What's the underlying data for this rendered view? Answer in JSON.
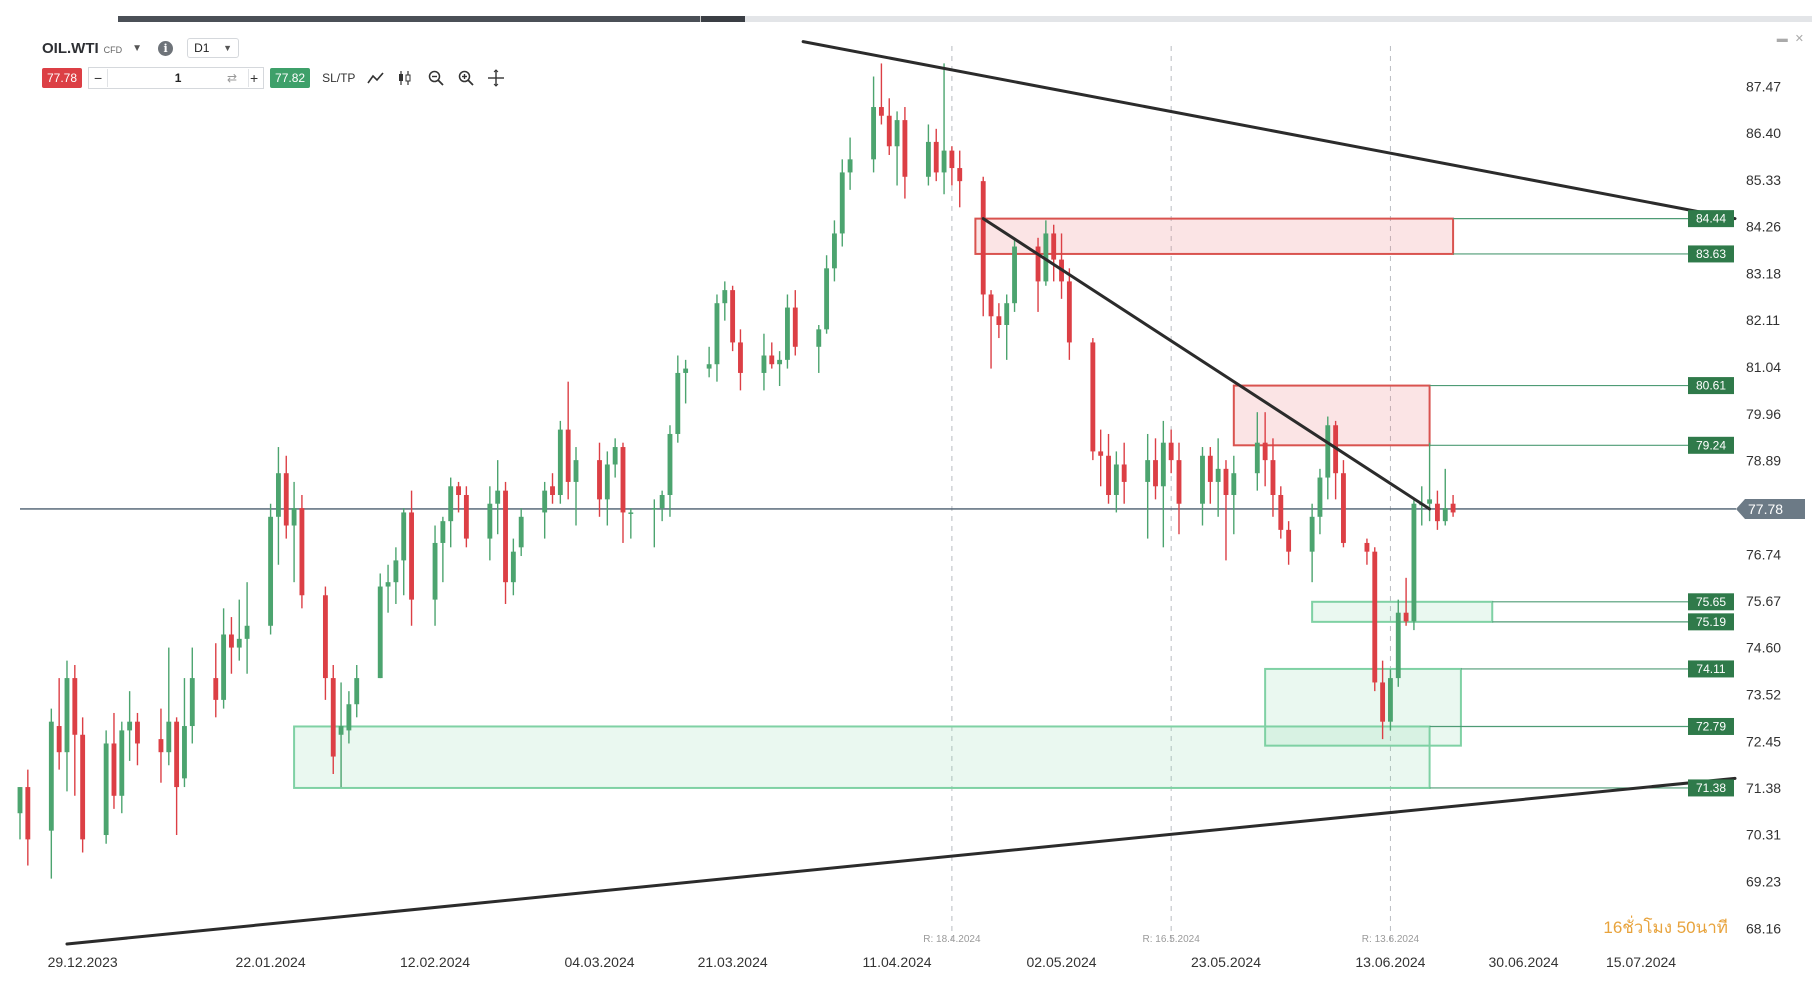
{
  "toolbar": {
    "symbol": "OIL.WTI",
    "instrument_type": "CFD",
    "timeframe": "D1",
    "sell_price": "77.78",
    "buy_price": "77.82",
    "quantity": "1",
    "qty_minus": "−",
    "qty_plus": "+",
    "sltp_label": "SL/TP",
    "info_glyph": "i"
  },
  "timer": "16ชั่วโมง 50นาที",
  "colors": {
    "bull": "#4ca46f",
    "bear": "#dc3f45",
    "level_tag": "#2f7a4a",
    "current_price_tag": "#6c7a86",
    "trendline": "#2b2b2b",
    "demand_zone": "#7fd1a4",
    "supply_zone": "#d9534f"
  },
  "chart_data": {
    "type": "candlestick",
    "symbol": "OIL.WTI",
    "timeframe": "D1",
    "ylim": [
      67.8,
      88.4
    ],
    "x_range": [
      "2023-12-21",
      "2024-07-27"
    ],
    "y_ticks": [
      "87.47",
      "86.40",
      "85.33",
      "84.26",
      "83.18",
      "82.11",
      "81.04",
      "79.96",
      "78.89",
      "77.78",
      "76.74",
      "75.67",
      "74.60",
      "73.52",
      "72.45",
      "71.38",
      "70.31",
      "69.23",
      "68.16"
    ],
    "x_tick_labels": [
      {
        "date": "2023-12-29",
        "label": "29.12.2023"
      },
      {
        "date": "2024-01-22",
        "label": "22.01.2024"
      },
      {
        "date": "2024-02-12",
        "label": "12.02.2024"
      },
      {
        "date": "2024-03-04",
        "label": "04.03.2024"
      },
      {
        "date": "2024-03-21",
        "label": "21.03.2024"
      },
      {
        "date": "2024-04-11",
        "label": "11.04.2024"
      },
      {
        "date": "2024-05-02",
        "label": "02.05.2024"
      },
      {
        "date": "2024-05-23",
        "label": "23.05.2024"
      },
      {
        "date": "2024-06-13",
        "label": "13.06.2024"
      },
      {
        "date": "2024-06-30",
        "label": "30.06.2024"
      },
      {
        "date": "2024-07-15",
        "label": "15.07.2024"
      }
    ],
    "rollover_markers": [
      {
        "date": "2024-04-18",
        "label": "R: 18.4.2024"
      },
      {
        "date": "2024-05-16",
        "label": "R: 16.5.2024"
      },
      {
        "date": "2024-06-13",
        "label": "R: 13.6.2024"
      }
    ],
    "current_price": 77.78,
    "level_tags": [
      "84.44",
      "83.63",
      "80.61",
      "79.24",
      "75.65",
      "75.19",
      "74.11",
      "72.79",
      "71.38"
    ],
    "zones": [
      {
        "type": "supply",
        "start": "2024-04-21",
        "end": "2024-06-21",
        "top": 84.44,
        "bottom": 83.63
      },
      {
        "type": "supply",
        "start": "2024-05-24",
        "end": "2024-06-18",
        "top": 80.61,
        "bottom": 79.24
      },
      {
        "type": "demand",
        "start": "2024-06-03",
        "end": "2024-06-26",
        "top": 75.65,
        "bottom": 75.19
      },
      {
        "type": "demand",
        "start": "2024-05-28",
        "end": "2024-06-22",
        "top": 74.11,
        "bottom": 72.35
      },
      {
        "type": "demand",
        "start": "2024-01-25",
        "end": "2024-06-18",
        "top": 72.79,
        "bottom": 71.38
      }
    ],
    "trendlines": [
      {
        "x1": "2024-03-30",
        "y1": 88.5,
        "x2": "2024-07-27",
        "y2": 84.44
      },
      {
        "x1": "2024-04-22",
        "y1": 84.44,
        "x2": "2024-06-18",
        "y2": 77.78
      },
      {
        "x1": "2023-12-27",
        "y1": 67.8,
        "x2": "2024-07-27",
        "y2": 71.6
      }
    ],
    "candles": [
      {
        "d": "2023-12-21",
        "o": 70.8,
        "h": 71.4,
        "l": 70.2,
        "c": 71.4
      },
      {
        "d": "2023-12-22",
        "o": 71.4,
        "h": 71.8,
        "l": 69.6,
        "c": 70.2
      },
      {
        "d": "2023-12-25",
        "o": 70.4,
        "h": 73.2,
        "l": 69.3,
        "c": 72.9
      },
      {
        "d": "2023-12-26",
        "o": 72.8,
        "h": 73.9,
        "l": 71.8,
        "c": 72.2
      },
      {
        "d": "2023-12-27",
        "o": 72.2,
        "h": 74.3,
        "l": 71.3,
        "c": 73.9
      },
      {
        "d": "2023-12-28",
        "o": 73.9,
        "h": 74.2,
        "l": 71.2,
        "c": 72.6
      },
      {
        "d": "2023-12-29",
        "o": 72.6,
        "h": 73.0,
        "l": 69.9,
        "c": 70.2
      },
      {
        "d": "2024-01-01",
        "o": 70.3,
        "h": 72.7,
        "l": 70.1,
        "c": 72.4
      },
      {
        "d": "2024-01-02",
        "o": 72.4,
        "h": 73.1,
        "l": 70.9,
        "c": 71.2
      },
      {
        "d": "2024-01-03",
        "o": 71.2,
        "h": 72.9,
        "l": 70.8,
        "c": 72.7
      },
      {
        "d": "2024-01-04",
        "o": 72.7,
        "h": 73.6,
        "l": 72.0,
        "c": 72.9
      },
      {
        "d": "2024-01-05",
        "o": 72.9,
        "h": 73.1,
        "l": 71.9,
        "c": 72.4
      },
      {
        "d": "2024-01-08",
        "o": 72.5,
        "h": 73.2,
        "l": 71.5,
        "c": 72.2
      },
      {
        "d": "2024-01-09",
        "o": 72.2,
        "h": 74.6,
        "l": 71.9,
        "c": 72.9
      },
      {
        "d": "2024-01-10",
        "o": 72.9,
        "h": 73.0,
        "l": 70.3,
        "c": 71.4
      },
      {
        "d": "2024-01-11",
        "o": 71.6,
        "h": 73.9,
        "l": 71.4,
        "c": 72.8
      },
      {
        "d": "2024-01-12",
        "o": 72.8,
        "h": 74.6,
        "l": 72.4,
        "c": 73.9
      },
      {
        "d": "2024-01-15",
        "o": 73.9,
        "h": 74.7,
        "l": 73.0,
        "c": 73.4
      },
      {
        "d": "2024-01-16",
        "o": 73.4,
        "h": 75.5,
        "l": 73.2,
        "c": 74.9
      },
      {
        "d": "2024-01-17",
        "o": 74.9,
        "h": 75.3,
        "l": 74.0,
        "c": 74.6
      },
      {
        "d": "2024-01-18",
        "o": 74.6,
        "h": 75.7,
        "l": 74.3,
        "c": 74.8
      },
      {
        "d": "2024-01-19",
        "o": 74.8,
        "h": 76.1,
        "l": 74.0,
        "c": 75.1
      },
      {
        "d": "2024-01-22",
        "o": 75.1,
        "h": 77.9,
        "l": 74.9,
        "c": 77.6
      },
      {
        "d": "2024-01-23",
        "o": 77.6,
        "h": 79.2,
        "l": 76.5,
        "c": 78.6
      },
      {
        "d": "2024-01-24",
        "o": 78.6,
        "h": 79.0,
        "l": 77.1,
        "c": 77.4
      },
      {
        "d": "2024-01-25",
        "o": 77.4,
        "h": 78.4,
        "l": 76.1,
        "c": 77.8
      },
      {
        "d": "2024-01-26",
        "o": 77.8,
        "h": 78.1,
        "l": 75.5,
        "c": 75.8
      },
      {
        "d": "2024-01-29",
        "o": 75.8,
        "h": 76.0,
        "l": 73.4,
        "c": 73.9
      },
      {
        "d": "2024-01-30",
        "o": 73.9,
        "h": 74.2,
        "l": 71.7,
        "c": 72.1
      },
      {
        "d": "2024-01-31",
        "o": 72.6,
        "h": 73.8,
        "l": 71.4,
        "c": 72.8
      },
      {
        "d": "2024-02-01",
        "o": 72.7,
        "h": 73.6,
        "l": 72.4,
        "c": 73.3
      },
      {
        "d": "2024-02-02",
        "o": 73.3,
        "h": 74.2,
        "l": 73.0,
        "c": 73.9
      },
      {
        "d": "2024-02-05",
        "o": 73.9,
        "h": 76.3,
        "l": 73.9,
        "c": 76.0
      },
      {
        "d": "2024-02-06",
        "o": 76.0,
        "h": 76.5,
        "l": 75.4,
        "c": 76.1
      },
      {
        "d": "2024-02-07",
        "o": 76.1,
        "h": 76.9,
        "l": 75.6,
        "c": 76.6
      },
      {
        "d": "2024-02-08",
        "o": 76.6,
        "h": 77.8,
        "l": 75.8,
        "c": 77.7
      },
      {
        "d": "2024-02-09",
        "o": 77.7,
        "h": 78.2,
        "l": 75.1,
        "c": 75.7
      },
      {
        "d": "2024-02-12",
        "o": 75.7,
        "h": 77.4,
        "l": 75.1,
        "c": 77.0
      },
      {
        "d": "2024-02-13",
        "o": 77.0,
        "h": 77.6,
        "l": 76.1,
        "c": 77.5
      },
      {
        "d": "2024-02-14",
        "o": 77.5,
        "h": 78.5,
        "l": 76.9,
        "c": 78.3
      },
      {
        "d": "2024-02-15",
        "o": 78.3,
        "h": 78.4,
        "l": 77.7,
        "c": 78.1
      },
      {
        "d": "2024-02-16",
        "o": 78.1,
        "h": 78.3,
        "l": 76.9,
        "c": 77.1
      },
      {
        "d": "2024-02-19",
        "o": 77.1,
        "h": 78.3,
        "l": 76.6,
        "c": 77.9
      },
      {
        "d": "2024-02-20",
        "o": 77.9,
        "h": 78.9,
        "l": 77.2,
        "c": 78.2
      },
      {
        "d": "2024-02-21",
        "o": 78.2,
        "h": 78.4,
        "l": 75.6,
        "c": 76.1
      },
      {
        "d": "2024-02-22",
        "o": 76.1,
        "h": 77.1,
        "l": 75.8,
        "c": 76.8
      },
      {
        "d": "2024-02-23",
        "o": 76.9,
        "h": 77.8,
        "l": 76.7,
        "c": 77.6
      },
      {
        "d": "2024-02-26",
        "o": 77.7,
        "h": 78.4,
        "l": 77.1,
        "c": 78.2
      },
      {
        "d": "2024-02-27",
        "o": 78.3,
        "h": 78.6,
        "l": 77.9,
        "c": 78.1
      },
      {
        "d": "2024-02-28",
        "o": 78.1,
        "h": 79.8,
        "l": 77.9,
        "c": 79.6
      },
      {
        "d": "2024-02-29",
        "o": 79.6,
        "h": 80.7,
        "l": 78.0,
        "c": 78.4
      },
      {
        "d": "2024-03-01",
        "o": 78.4,
        "h": 79.2,
        "l": 77.4,
        "c": 78.9
      },
      {
        "d": "2024-03-04",
        "o": 78.9,
        "h": 79.3,
        "l": 77.6,
        "c": 78.0
      },
      {
        "d": "2024-03-05",
        "o": 78.0,
        "h": 79.1,
        "l": 77.4,
        "c": 78.8
      },
      {
        "d": "2024-03-06",
        "o": 78.8,
        "h": 79.4,
        "l": 78.5,
        "c": 79.2
      },
      {
        "d": "2024-03-07",
        "o": 79.2,
        "h": 79.3,
        "l": 77.0,
        "c": 77.7
      },
      {
        "d": "2024-03-08",
        "o": 77.7,
        "h": 77.8,
        "l": 77.1,
        "c": 77.7
      },
      {
        "d": "2024-03-11",
        "o": 77.8,
        "h": 78.0,
        "l": 76.9,
        "c": 77.8
      },
      {
        "d": "2024-03-12",
        "o": 77.8,
        "h": 78.2,
        "l": 77.5,
        "c": 78.1
      },
      {
        "d": "2024-03-13",
        "o": 78.1,
        "h": 79.7,
        "l": 77.6,
        "c": 79.5
      },
      {
        "d": "2024-03-14",
        "o": 79.5,
        "h": 81.3,
        "l": 79.3,
        "c": 80.9
      },
      {
        "d": "2024-03-15",
        "o": 80.9,
        "h": 81.2,
        "l": 80.2,
        "c": 81.0
      },
      {
        "d": "2024-03-18",
        "o": 81.0,
        "h": 81.5,
        "l": 80.8,
        "c": 81.1
      },
      {
        "d": "2024-03-19",
        "o": 81.1,
        "h": 82.7,
        "l": 80.7,
        "c": 82.5
      },
      {
        "d": "2024-03-20",
        "o": 82.5,
        "h": 83.0,
        "l": 82.1,
        "c": 82.8
      },
      {
        "d": "2024-03-21",
        "o": 82.8,
        "h": 82.9,
        "l": 81.4,
        "c": 81.6
      },
      {
        "d": "2024-03-22",
        "o": 81.6,
        "h": 81.9,
        "l": 80.5,
        "c": 80.9
      },
      {
        "d": "2024-03-25",
        "o": 80.9,
        "h": 81.8,
        "l": 80.5,
        "c": 81.3
      },
      {
        "d": "2024-03-26",
        "o": 81.3,
        "h": 81.6,
        "l": 81.0,
        "c": 81.1
      },
      {
        "d": "2024-03-27",
        "o": 81.1,
        "h": 81.4,
        "l": 80.6,
        "c": 81.2
      },
      {
        "d": "2024-03-28",
        "o": 81.2,
        "h": 82.7,
        "l": 81.0,
        "c": 82.4
      },
      {
        "d": "2024-03-29",
        "o": 82.4,
        "h": 82.8,
        "l": 81.3,
        "c": 81.5
      },
      {
        "d": "2024-04-01",
        "o": 81.5,
        "h": 82.0,
        "l": 80.9,
        "c": 81.9
      },
      {
        "d": "2024-04-02",
        "o": 81.9,
        "h": 83.6,
        "l": 81.8,
        "c": 83.3
      },
      {
        "d": "2024-04-03",
        "o": 83.3,
        "h": 84.4,
        "l": 83.0,
        "c": 84.1
      },
      {
        "d": "2024-04-04",
        "o": 84.1,
        "h": 85.8,
        "l": 83.8,
        "c": 85.5
      },
      {
        "d": "2024-04-05",
        "o": 85.5,
        "h": 86.3,
        "l": 85.1,
        "c": 85.8
      },
      {
        "d": "2024-04-08",
        "o": 85.8,
        "h": 87.7,
        "l": 85.5,
        "c": 87.0
      },
      {
        "d": "2024-04-09",
        "o": 87.0,
        "h": 88.0,
        "l": 86.6,
        "c": 86.8
      },
      {
        "d": "2024-04-10",
        "o": 86.8,
        "h": 87.2,
        "l": 85.9,
        "c": 86.1
      },
      {
        "d": "2024-04-11",
        "o": 86.1,
        "h": 86.9,
        "l": 85.2,
        "c": 86.7
      },
      {
        "d": "2024-04-12",
        "o": 86.7,
        "h": 87.0,
        "l": 84.9,
        "c": 85.4
      },
      {
        "d": "2024-04-15",
        "o": 85.4,
        "h": 86.6,
        "l": 85.2,
        "c": 86.2
      },
      {
        "d": "2024-04-16",
        "o": 86.2,
        "h": 86.5,
        "l": 85.3,
        "c": 85.5
      },
      {
        "d": "2024-04-17",
        "o": 85.5,
        "h": 88.0,
        "l": 85.0,
        "c": 86.0
      },
      {
        "d": "2024-04-18",
        "o": 86.0,
        "h": 86.1,
        "l": 85.2,
        "c": 85.6
      },
      {
        "d": "2024-04-19",
        "o": 85.6,
        "h": 86.0,
        "l": 84.7,
        "c": 85.3
      },
      {
        "d": "2024-04-22",
        "o": 85.3,
        "h": 85.4,
        "l": 82.2,
        "c": 82.7
      },
      {
        "d": "2024-04-23",
        "o": 82.7,
        "h": 82.8,
        "l": 81.0,
        "c": 82.2
      },
      {
        "d": "2024-04-24",
        "o": 82.2,
        "h": 82.5,
        "l": 81.7,
        "c": 82.0
      },
      {
        "d": "2024-04-25",
        "o": 82.0,
        "h": 82.7,
        "l": 81.2,
        "c": 82.5
      },
      {
        "d": "2024-04-26",
        "o": 82.5,
        "h": 84.0,
        "l": 82.3,
        "c": 83.8
      },
      {
        "d": "2024-04-29",
        "o": 83.8,
        "h": 84.0,
        "l": 82.3,
        "c": 83.0
      },
      {
        "d": "2024-04-30",
        "o": 83.0,
        "h": 84.4,
        "l": 82.9,
        "c": 84.1
      },
      {
        "d": "2024-05-01",
        "o": 84.1,
        "h": 84.3,
        "l": 83.0,
        "c": 83.5
      },
      {
        "d": "2024-05-02",
        "o": 83.5,
        "h": 84.1,
        "l": 82.6,
        "c": 83.0
      },
      {
        "d": "2024-05-03",
        "o": 83.0,
        "h": 83.3,
        "l": 81.2,
        "c": 81.6
      },
      {
        "d": "2024-05-06",
        "o": 81.6,
        "h": 81.7,
        "l": 78.9,
        "c": 79.1
      },
      {
        "d": "2024-05-07",
        "o": 79.1,
        "h": 79.6,
        "l": 78.3,
        "c": 79.0
      },
      {
        "d": "2024-05-08",
        "o": 79.0,
        "h": 79.5,
        "l": 77.9,
        "c": 78.1
      },
      {
        "d": "2024-05-09",
        "o": 78.1,
        "h": 79.1,
        "l": 77.7,
        "c": 78.8
      },
      {
        "d": "2024-05-10",
        "o": 78.8,
        "h": 79.3,
        "l": 77.9,
        "c": 78.4
      },
      {
        "d": "2024-05-13",
        "o": 78.4,
        "h": 79.5,
        "l": 77.1,
        "c": 78.9
      },
      {
        "d": "2024-05-14",
        "o": 78.9,
        "h": 79.4,
        "l": 78.0,
        "c": 78.3
      },
      {
        "d": "2024-05-15",
        "o": 78.3,
        "h": 79.8,
        "l": 76.9,
        "c": 79.3
      },
      {
        "d": "2024-05-16",
        "o": 79.3,
        "h": 79.6,
        "l": 78.6,
        "c": 78.9
      },
      {
        "d": "2024-05-17",
        "o": 78.9,
        "h": 79.3,
        "l": 77.2,
        "c": 77.9
      },
      {
        "d": "2024-05-20",
        "o": 77.9,
        "h": 79.2,
        "l": 77.4,
        "c": 79.0
      },
      {
        "d": "2024-05-21",
        "o": 79.0,
        "h": 79.2,
        "l": 77.9,
        "c": 78.4
      },
      {
        "d": "2024-05-22",
        "o": 78.4,
        "h": 79.4,
        "l": 77.6,
        "c": 78.7
      },
      {
        "d": "2024-05-23",
        "o": 78.7,
        "h": 78.9,
        "l": 76.6,
        "c": 78.1
      },
      {
        "d": "2024-05-24",
        "o": 78.1,
        "h": 79.0,
        "l": 77.2,
        "c": 78.6
      },
      {
        "d": "2024-05-27",
        "o": 78.6,
        "h": 80.0,
        "l": 78.2,
        "c": 79.3
      },
      {
        "d": "2024-05-28",
        "o": 79.3,
        "h": 80.0,
        "l": 78.3,
        "c": 78.9
      },
      {
        "d": "2024-05-29",
        "o": 78.9,
        "h": 79.4,
        "l": 77.6,
        "c": 78.1
      },
      {
        "d": "2024-05-30",
        "o": 78.1,
        "h": 78.3,
        "l": 77.1,
        "c": 77.3
      },
      {
        "d": "2024-05-31",
        "o": 77.3,
        "h": 77.5,
        "l": 76.5,
        "c": 76.8
      },
      {
        "d": "2024-06-03",
        "o": 76.8,
        "h": 77.9,
        "l": 76.1,
        "c": 77.6
      },
      {
        "d": "2024-06-04",
        "o": 77.6,
        "h": 78.7,
        "l": 77.2,
        "c": 78.5
      },
      {
        "d": "2024-06-05",
        "o": 78.5,
        "h": 79.9,
        "l": 78.0,
        "c": 79.7
      },
      {
        "d": "2024-06-06",
        "o": 79.7,
        "h": 79.8,
        "l": 78.0,
        "c": 78.6
      },
      {
        "d": "2024-06-07",
        "o": 78.6,
        "h": 78.9,
        "l": 76.9,
        "c": 77.0
      },
      {
        "d": "2024-06-10",
        "o": 77.0,
        "h": 77.1,
        "l": 76.5,
        "c": 76.8
      },
      {
        "d": "2024-06-11",
        "o": 76.8,
        "h": 76.9,
        "l": 73.6,
        "c": 73.8
      },
      {
        "d": "2024-06-12",
        "o": 73.8,
        "h": 74.3,
        "l": 72.5,
        "c": 72.9
      },
      {
        "d": "2024-06-13",
        "o": 72.9,
        "h": 74.1,
        "l": 72.7,
        "c": 73.9
      },
      {
        "d": "2024-06-14",
        "o": 73.9,
        "h": 75.7,
        "l": 73.7,
        "c": 75.4
      },
      {
        "d": "2024-06-15",
        "o": 75.4,
        "h": 76.2,
        "l": 75.1,
        "c": 75.2
      },
      {
        "d": "2024-06-16",
        "o": 75.2,
        "h": 78.0,
        "l": 75.0,
        "c": 77.9
      },
      {
        "d": "2024-06-17",
        "o": 77.9,
        "h": 78.3,
        "l": 77.4,
        "c": 77.9
      },
      {
        "d": "2024-06-18",
        "o": 77.9,
        "h": 79.3,
        "l": 77.5,
        "c": 78.0
      },
      {
        "d": "2024-06-19",
        "o": 77.9,
        "h": 78.2,
        "l": 77.3,
        "c": 77.5
      },
      {
        "d": "2024-06-20",
        "o": 77.5,
        "h": 78.7,
        "l": 77.4,
        "c": 77.8
      },
      {
        "d": "2024-06-21",
        "o": 77.9,
        "h": 78.1,
        "l": 77.6,
        "c": 77.7
      }
    ]
  }
}
